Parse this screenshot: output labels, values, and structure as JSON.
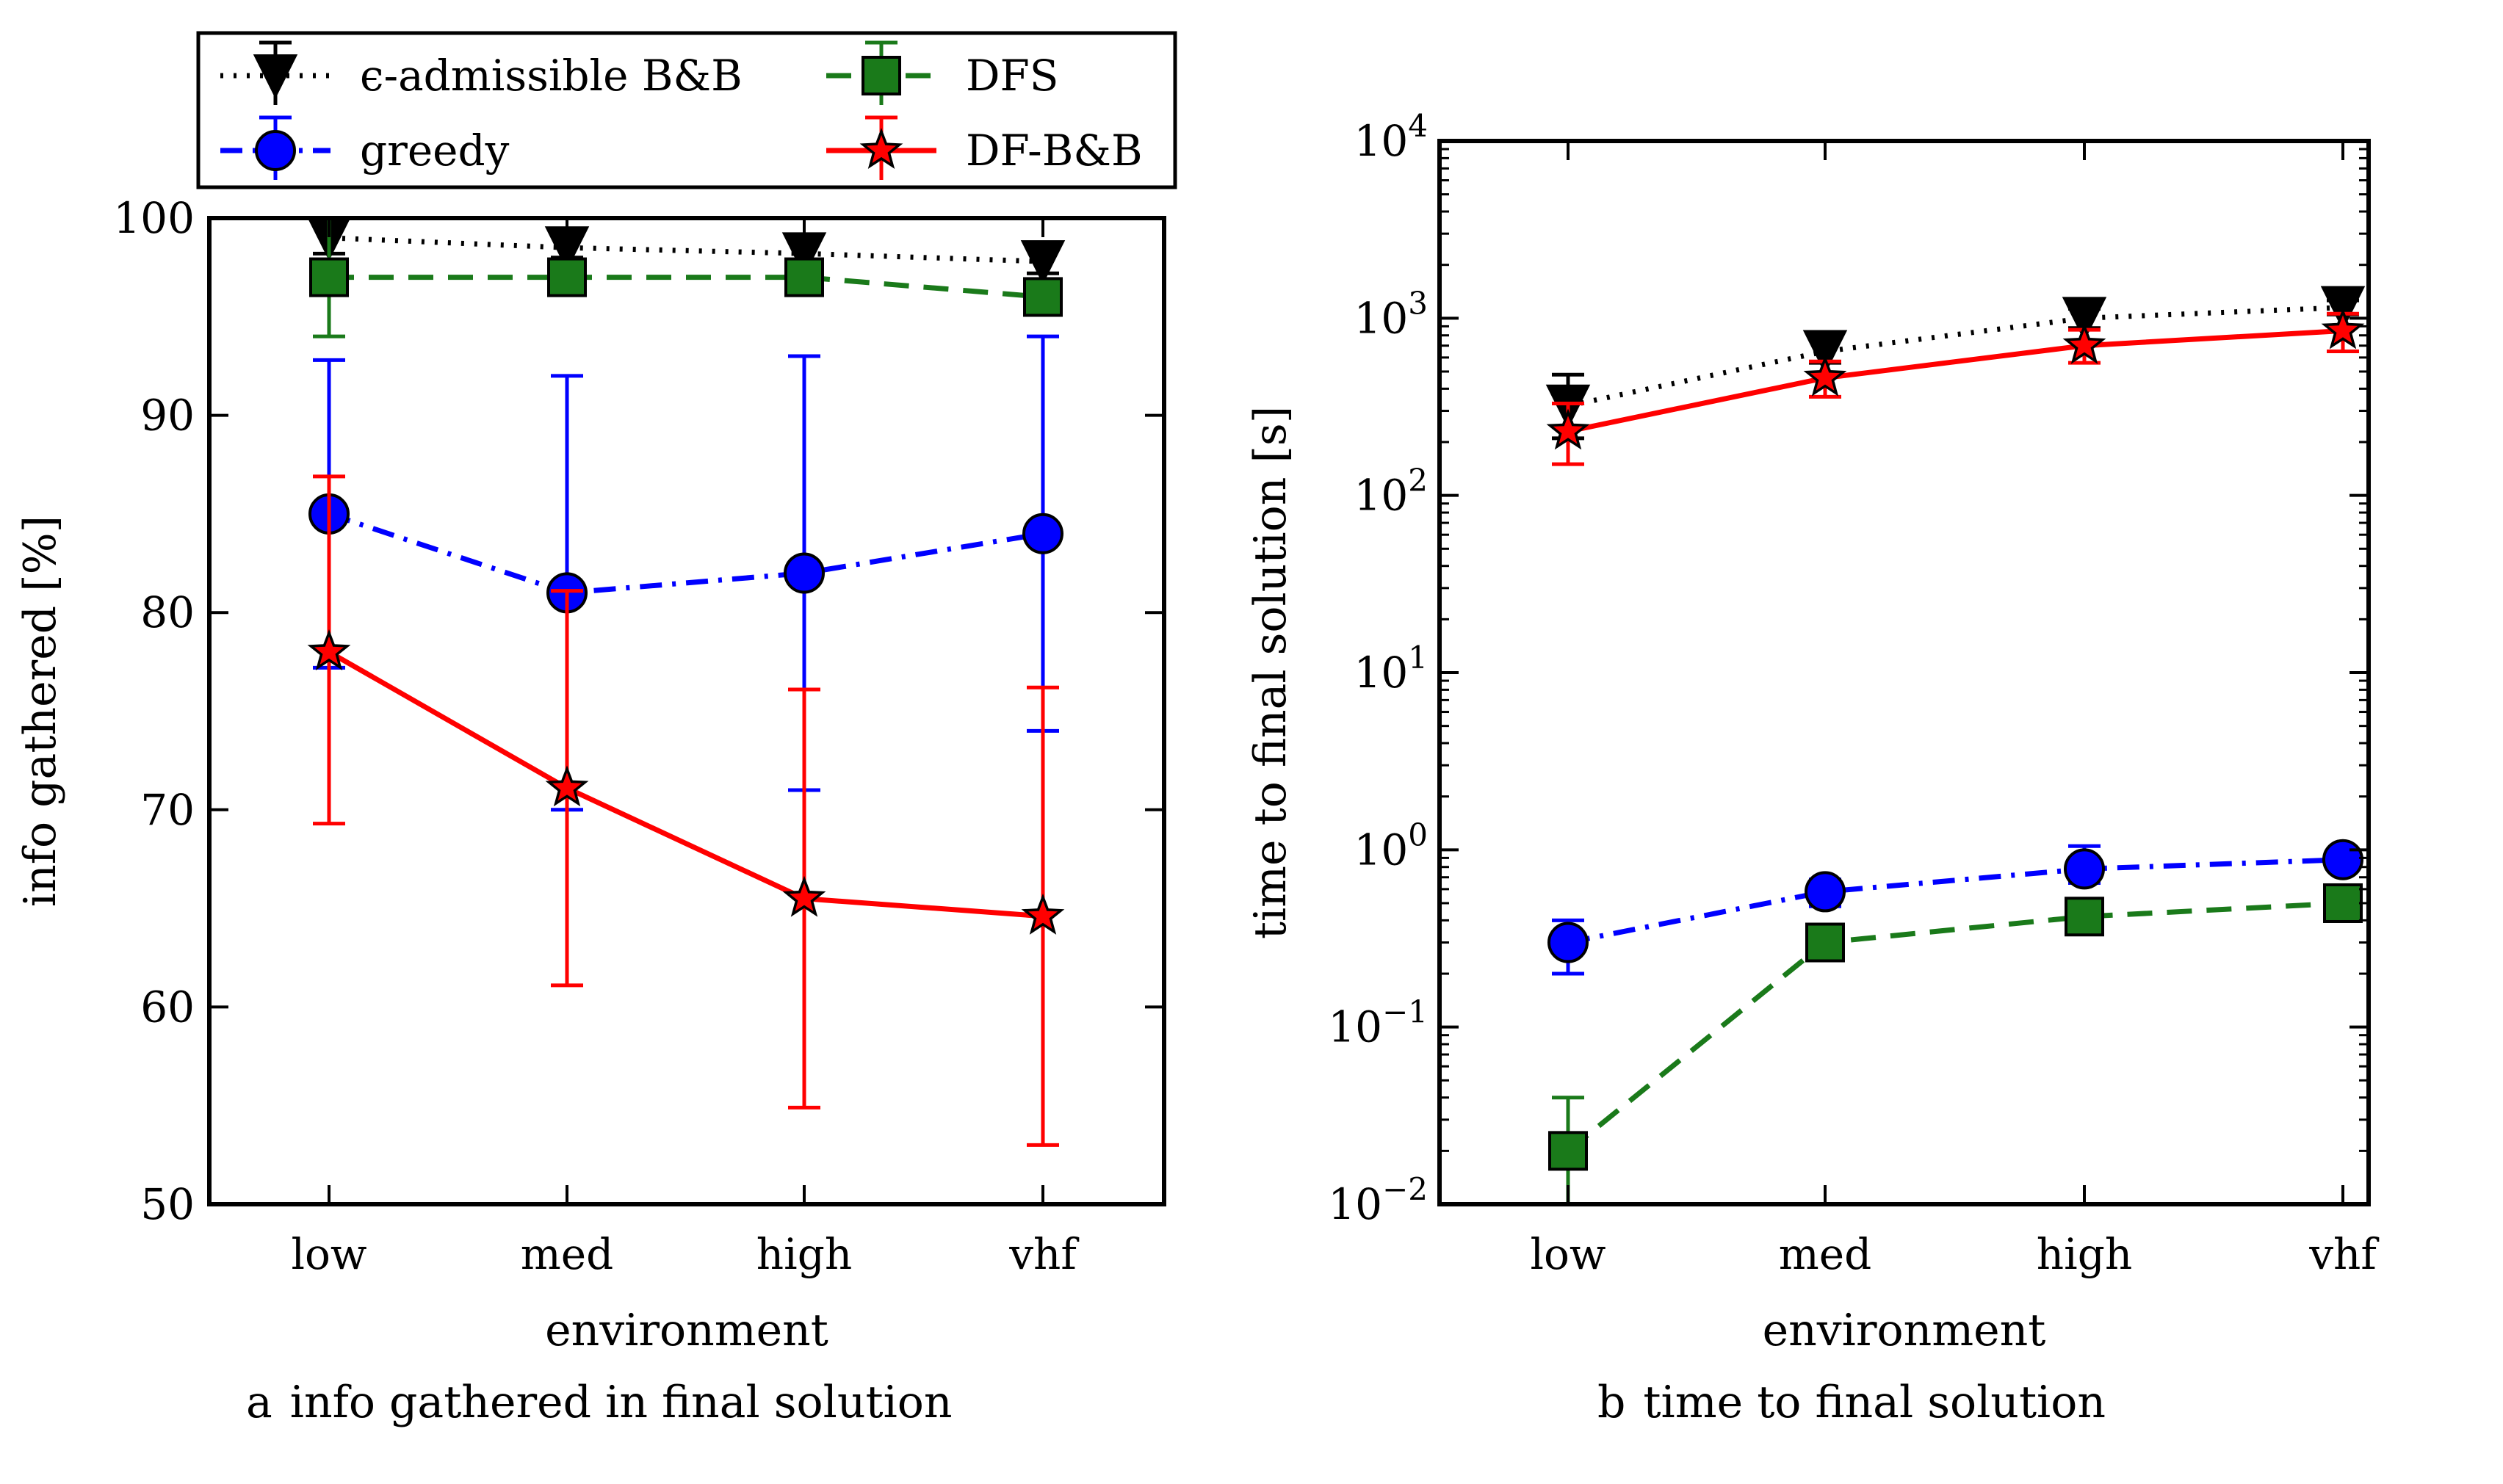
{
  "chart_data": [
    {
      "type": "line",
      "caption_letter": "a",
      "caption": "info gathered in final solution",
      "xlabel": "environment",
      "ylabel": "info gathered [%]",
      "yscale": "linear",
      "ylim": [
        50,
        100
      ],
      "yticks": [
        50,
        60,
        70,
        80,
        90,
        100
      ],
      "ytick_labels": [
        "50",
        "60",
        "70",
        "80",
        "90",
        "100"
      ],
      "categories": [
        "low",
        "med",
        "high",
        "vhf"
      ],
      "legend": {
        "placement": "top, above plot",
        "entries": [
          "ϵ-admissible B&B",
          "DFS",
          "greedy",
          "DF-B&B"
        ]
      },
      "series": [
        {
          "name": "ϵ-admissible B&B",
          "color": "#000000",
          "marker": "triangle-down",
          "linestyle": "dotted",
          "values": [
            99,
            98.5,
            98.2,
            97.8
          ],
          "err_low": [
            98.2,
            98.0,
            97.6,
            97.2
          ],
          "err_high": [
            100,
            99.2,
            98.8,
            98.4
          ]
        },
        {
          "name": "DFS",
          "color": "#1a7a1a",
          "marker": "square",
          "linestyle": "dashed",
          "values": [
            97,
            97,
            97,
            96
          ],
          "err_low": [
            94,
            96.4,
            96.4,
            95.4
          ],
          "err_high": [
            100,
            97.6,
            97.6,
            96.6
          ]
        },
        {
          "name": "greedy",
          "color": "#0000ff",
          "marker": "circle",
          "linestyle": "dashdot",
          "values": [
            85,
            81,
            82,
            84
          ],
          "err_low": [
            77.2,
            70,
            71,
            74
          ],
          "err_high": [
            92.8,
            92,
            93,
            94
          ]
        },
        {
          "name": "DF-B&B",
          "color": "#ff0000",
          "marker": "star",
          "linestyle": "solid",
          "values": [
            78,
            71.1,
            65.5,
            64.6
          ],
          "err_low": [
            69.3,
            61.1,
            54.9,
            53
          ],
          "err_high": [
            86.9,
            81.1,
            76.1,
            76.2
          ]
        }
      ]
    },
    {
      "type": "line",
      "caption_letter": "b",
      "caption": "time to final solution",
      "xlabel": "environment",
      "ylabel": "time to final solution [s]",
      "yscale": "log",
      "ylim": [
        0.01,
        10000
      ],
      "yticks": [
        0.01,
        0.1,
        1,
        10,
        100,
        1000,
        10000
      ],
      "ytick_base": "10",
      "ytick_exponents": [
        "−2",
        "−1",
        "0",
        "1",
        "2",
        "3",
        "4"
      ],
      "categories": [
        "low",
        "med",
        "high",
        "vhf"
      ],
      "series": [
        {
          "name": "ϵ-admissible B&B",
          "color": "#000000",
          "marker": "triangle-down",
          "linestyle": "dotted",
          "values": [
            320,
            650,
            1000,
            1150
          ],
          "err_low": [
            210,
            560,
            880,
            1050
          ],
          "err_high": [
            480,
            760,
            1130,
            1260
          ]
        },
        {
          "name": "DF-B&B",
          "color": "#ff0000",
          "marker": "star",
          "linestyle": "solid",
          "values": [
            230,
            460,
            700,
            850
          ],
          "err_low": [
            150,
            360,
            560,
            650
          ],
          "err_high": [
            330,
            570,
            860,
            1060
          ]
        },
        {
          "name": "greedy",
          "color": "#0000ff",
          "marker": "circle",
          "linestyle": "dashdot",
          "values": [
            0.3,
            0.58,
            0.78,
            0.88
          ],
          "err_low": [
            0.2,
            0.48,
            0.65,
            0.78
          ],
          "err_high": [
            0.4,
            0.68,
            1.05,
            0.98
          ]
        },
        {
          "name": "DFS",
          "color": "#1a7a1a",
          "marker": "square",
          "linestyle": "dashed",
          "values": [
            0.02,
            0.3,
            0.42,
            0.5
          ],
          "err_low": [
            0.01,
            0.27,
            0.38,
            0.46
          ],
          "err_high": [
            0.04,
            0.33,
            0.46,
            0.55
          ]
        }
      ]
    }
  ]
}
